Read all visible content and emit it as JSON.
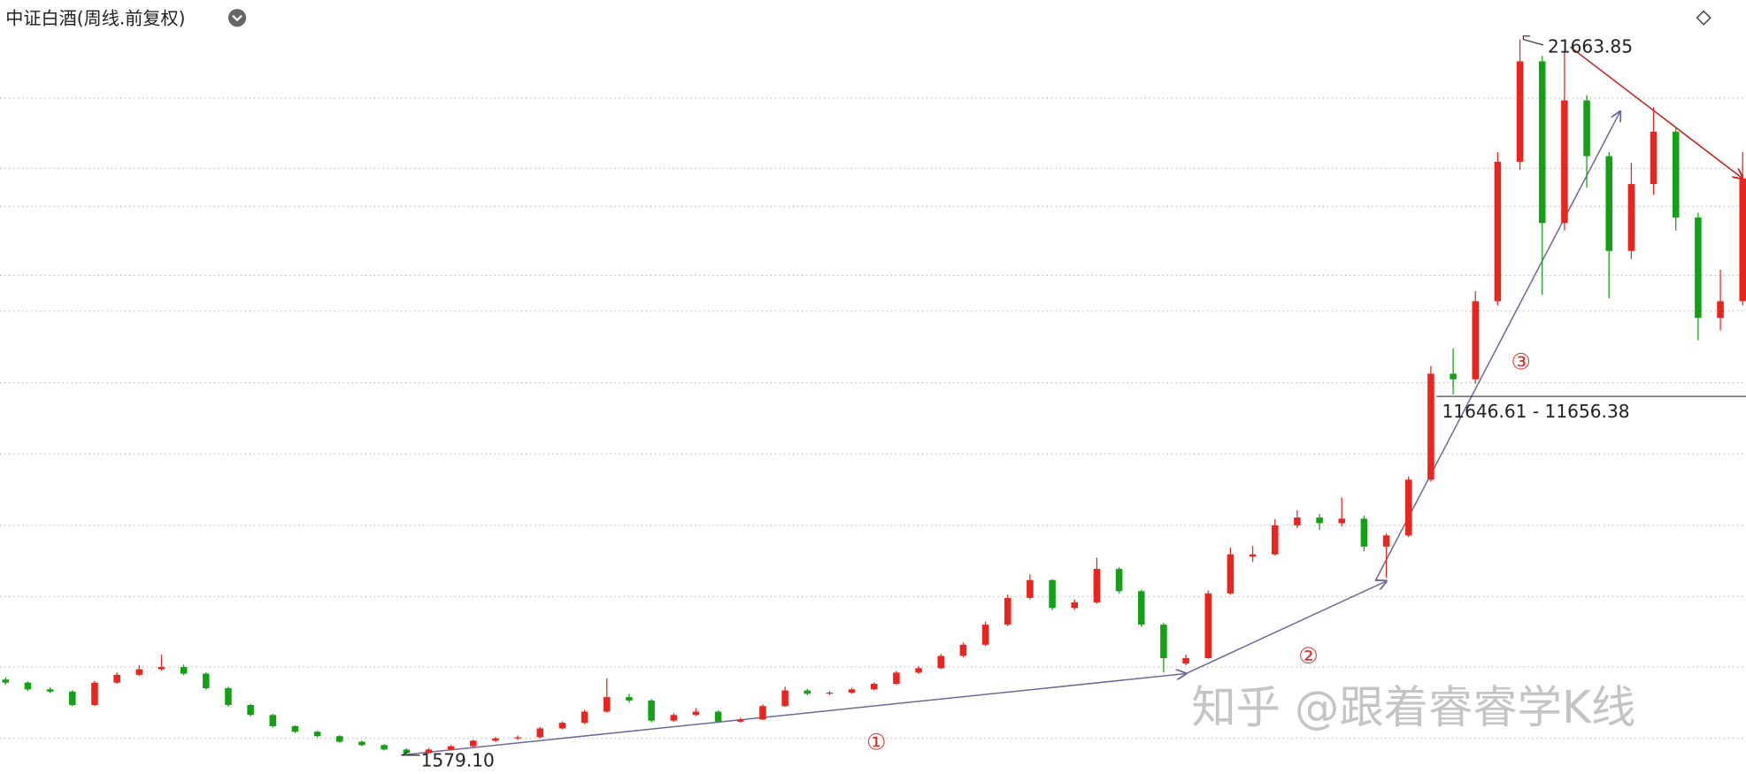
{
  "chart_data": {
    "type": "candlestick",
    "title": "中证白酒(周线.前复权)",
    "up_color": "#e8251f",
    "down_color": "#14a014",
    "ylim": [
      1050,
      22770
    ],
    "open": [
      3700,
      3614,
      3426,
      3363,
      2988,
      3614,
      3833,
      3989,
      4052,
      3864,
      3457,
      2988,
      2706,
      2393,
      2236,
      2111,
      1955,
      1861,
      1736,
      1642,
      1736,
      1829,
      1986,
      2049,
      2080,
      2330,
      2487,
      2800,
      3207,
      3113,
      2549,
      2706,
      2800,
      2518,
      2581,
      2956,
      3394,
      3301,
      3332,
      3426,
      3582,
      3895,
      4020,
      4365,
      4678,
      5241,
      5992,
      6493,
      5711,
      5867,
      6806,
      6180,
      5241,
      4150,
      4302,
      6118,
      7150,
      7213,
      8027,
      8246,
      8089,
      8215,
      7432,
      7745,
      9310,
      12284,
      12127,
      14318,
      18231,
      21048,
      16509,
      19952,
      18387,
      15727,
      17605,
      19076,
      16666,
      13849,
      14318
    ],
    "high": [
      3760,
      3650,
      3480,
      3400,
      3660,
      3900,
      4100,
      4396,
      4120,
      3900,
      3500,
      3020,
      2740,
      2420,
      2260,
      2140,
      1990,
      1890,
      1770,
      1780,
      1860,
      2010,
      2090,
      2130,
      2370,
      2530,
      2850,
      3739,
      3300,
      3150,
      2760,
      2900,
      2840,
      2630,
      3000,
      3500,
      3440,
      3380,
      3470,
      3620,
      3940,
      4080,
      4420,
      4740,
      5320,
      6080,
      6650,
      6520,
      5950,
      7119,
      6850,
      6220,
      5290,
      4400,
      6200,
      7400,
      7450,
      8200,
      8450,
      8350,
      8809,
      8300,
      7800,
      9400,
      12500,
      13000,
      14600,
      18500,
      21663.85,
      21200,
      21300,
      20100,
      18500,
      18200,
      19764,
      19200,
      16800,
      15200,
      18500
    ],
    "low": [
      3560,
      3380,
      3320,
      2950,
      2960,
      3580,
      3800,
      3950,
      3820,
      3420,
      2940,
      2670,
      2360,
      2200,
      2080,
      1930,
      1830,
      1710,
      1579.1,
      1620,
      1710,
      1800,
      1950,
      2010,
      2050,
      2300,
      2450,
      2770,
      3050,
      2500,
      2510,
      2680,
      2480,
      2490,
      2560,
      2930,
      3260,
      3270,
      3300,
      3400,
      3550,
      3860,
      3990,
      4330,
      4640,
      5200,
      5950,
      5650,
      5660,
      5830,
      6120,
      5180,
      3895,
      4100,
      4280,
      6080,
      7000,
      7180,
      7950,
      7900,
      8000,
      7300,
      6556,
      7700,
      9250,
      11700,
      12000,
      14200,
      18000,
      14500,
      16300,
      17500,
      14400,
      15500,
      17300,
      16300,
      13223,
      13500,
      14200
    ],
    "close": [
      3614,
      3426,
      3363,
      2988,
      3614,
      3833,
      3989,
      4052,
      3864,
      3457,
      2988,
      2706,
      2393,
      2236,
      2111,
      1955,
      1861,
      1736,
      1642,
      1736,
      1829,
      1986,
      2049,
      2080,
      2330,
      2487,
      2800,
      3207,
      3113,
      2549,
      2706,
      2800,
      2518,
      2581,
      2956,
      3394,
      3301,
      3332,
      3426,
      3582,
      3895,
      4020,
      4365,
      4678,
      5241,
      5992,
      6493,
      5711,
      5867,
      6806,
      6180,
      5241,
      4302,
      4302,
      6118,
      7213,
      7213,
      8027,
      8246,
      8089,
      8215,
      7432,
      7745,
      9310,
      12284,
      12127,
      14318,
      18231,
      21048,
      16509,
      19952,
      18387,
      15727,
      17605,
      19076,
      16666,
      13849,
      14318,
      17761
    ],
    "annotations": [
      {
        "label": "21663.85",
        "value": 21663.85
      },
      {
        "label": "1579.10",
        "value": 1579.1
      },
      {
        "label": "11646.61 - 11656.38",
        "values": [
          11646.61,
          11656.38
        ]
      }
    ],
    "wave_labels": [
      "①",
      "②",
      "③"
    ],
    "watermark": "知乎 @跟着睿睿学K线"
  }
}
